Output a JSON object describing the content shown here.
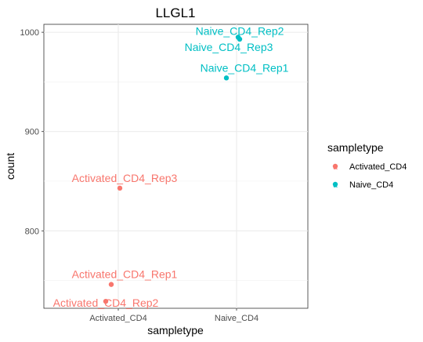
{
  "chart_data": {
    "type": "scatter",
    "title": "LLGL1",
    "xlabel": "sampletype",
    "ylabel": "count",
    "categories": [
      "Activated_CD4",
      "Naive_CD4"
    ],
    "ylim": [
      722,
      1008
    ],
    "yticks": [
      800,
      900,
      1000
    ],
    "grid": true,
    "legend_position": "right",
    "legend_title": "sampletype",
    "series": [
      {
        "name": "Activated_CD4",
        "color": "#F8766D",
        "points": [
          {
            "x": "Activated_CD4",
            "y": 746,
            "label": "Activated_CD4_Rep1"
          },
          {
            "x": "Activated_CD4",
            "y": 729,
            "label": "Activated_CD4_Rep2"
          },
          {
            "x": "Activated_CD4",
            "y": 843,
            "label": "Activated_CD4_Rep3"
          }
        ]
      },
      {
        "name": "Naive_CD4",
        "color": "#00BFC4",
        "points": [
          {
            "x": "Naive_CD4",
            "y": 954,
            "label": "Naive_CD4_Rep1"
          },
          {
            "x": "Naive_CD4",
            "y": 995,
            "label": "Naive_CD4_Rep2"
          },
          {
            "x": "Naive_CD4",
            "y": 993,
            "label": "Naive_CD4_Rep3"
          }
        ]
      }
    ]
  }
}
